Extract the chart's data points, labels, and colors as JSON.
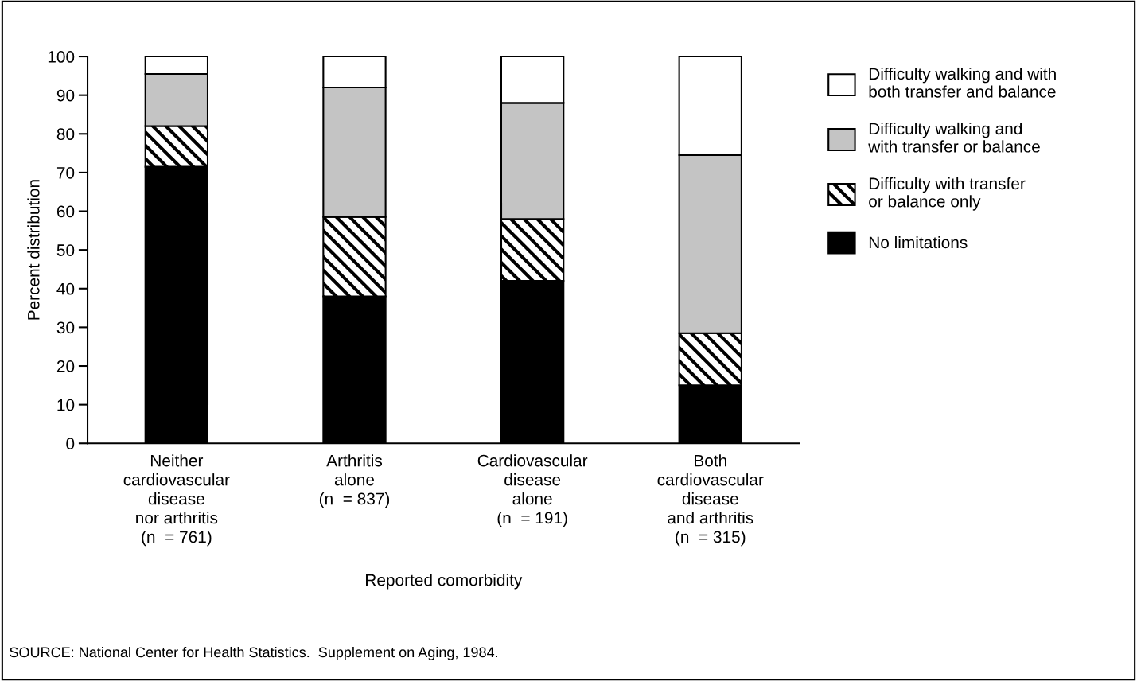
{
  "chart_data": {
    "type": "bar",
    "stacked": true,
    "ylabel": "Percent distribution",
    "xlabel": "Reported comorbidity",
    "categories": [
      "Neither\ncardiovascular\ndisease\nnor arthritis\n(n  = 761)",
      "Arthritis\nalone\n(n  = 837)",
      "Cardiovascular\ndisease\nalone\n(n  = 191)",
      "Both\ncardiovascular\ndisease\nand arthritis\n(n  = 315)"
    ],
    "series": [
      {
        "name": "No limitations",
        "color": "#000000",
        "values": [
          71.5,
          38,
          42,
          15
        ]
      },
      {
        "name": "Difficulty with transfer\nor balance only",
        "color": "#000000",
        "values": [
          10.5,
          20.5,
          16,
          13.5
        ]
      },
      {
        "name": "Difficulty walking and\nwith transfer or balance",
        "color": "#c4c4c4",
        "values": [
          13.5,
          33.5,
          30,
          46
        ]
      },
      {
        "name": "Difficulty walking and with\nboth transfer and balance",
        "color": "#ffffff",
        "values": [
          4.5,
          8,
          12,
          25.5
        ]
      }
    ],
    "ylim": [
      0,
      100
    ],
    "yticks": [
      0,
      10,
      20,
      30,
      40,
      50,
      60,
      70,
      80,
      90,
      100
    ],
    "grid": false,
    "legend": "right",
    "annotations": [
      "SOURCE: National Center for Health Statistics.  Supplement on Aging, 1984."
    ]
  }
}
